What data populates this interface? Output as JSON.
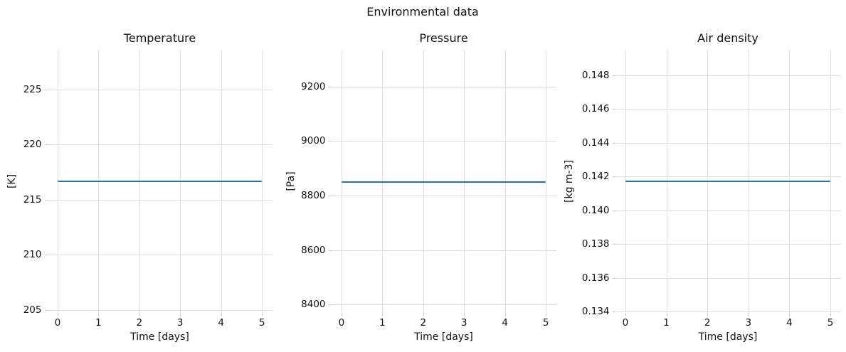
{
  "figure": {
    "suptitle": "Environmental data",
    "background_color": "#ffffff",
    "text_color": "#111111",
    "grid_color": "#dcdcdc",
    "tick_mark_color": "#c8c8c8",
    "line_color": "#1f77b4"
  },
  "chart_data": [
    {
      "type": "line",
      "title": "Temperature",
      "xlabel": "Time [days]",
      "ylabel": "[K]",
      "series": [
        {
          "name": "temperature",
          "x": [
            0,
            5
          ],
          "y": [
            216.65,
            216.65
          ]
        }
      ],
      "value": 216.65,
      "xlim": [
        -0.25,
        5.25
      ],
      "ylim": [
        204.7,
        228.6
      ],
      "xticks": [
        0,
        1,
        2,
        3,
        4,
        5
      ],
      "xtick_labels": [
        "0",
        "1",
        "2",
        "3",
        "4",
        "5"
      ],
      "yticks": [
        205,
        210,
        215,
        220,
        225
      ],
      "ytick_labels": [
        "205",
        "210",
        "215",
        "220",
        "225"
      ],
      "grid": true,
      "legend": null,
      "line_color": "#1f77b4"
    },
    {
      "type": "line",
      "title": "Pressure",
      "xlabel": "Time [days]",
      "ylabel": "[Pa]",
      "series": [
        {
          "name": "pressure",
          "x": [
            0,
            5
          ],
          "y": [
            8850,
            8850
          ]
        }
      ],
      "value": 8850,
      "xlim": [
        -0.25,
        5.25
      ],
      "ylim": [
        8368,
        9335
      ],
      "xticks": [
        0,
        1,
        2,
        3,
        4,
        5
      ],
      "xtick_labels": [
        "0",
        "1",
        "2",
        "3",
        "4",
        "5"
      ],
      "yticks": [
        8400,
        8600,
        8800,
        9000,
        9200
      ],
      "ytick_labels": [
        "8400",
        "8600",
        "8800",
        "9000",
        "9200"
      ],
      "grid": true,
      "legend": null,
      "line_color": "#1f77b4"
    },
    {
      "type": "line",
      "title": "Air density",
      "xlabel": "Time [days]",
      "ylabel": "[kg m-3]",
      "series": [
        {
          "name": "air_density",
          "x": [
            0,
            5
          ],
          "y": [
            0.1417,
            0.1417
          ]
        }
      ],
      "value": 0.1417,
      "xlim": [
        -0.25,
        5.25
      ],
      "ylim": [
        0.1339,
        0.1495
      ],
      "xticks": [
        0,
        1,
        2,
        3,
        4,
        5
      ],
      "xtick_labels": [
        "0",
        "1",
        "2",
        "3",
        "4",
        "5"
      ],
      "yticks": [
        0.134,
        0.136,
        0.138,
        0.14,
        0.142,
        0.144,
        0.146,
        0.148
      ],
      "ytick_labels": [
        "0.134",
        "0.136",
        "0.138",
        "0.140",
        "0.142",
        "0.144",
        "0.146",
        "0.148"
      ],
      "grid": true,
      "legend": null,
      "line_color": "#1f77b4"
    }
  ]
}
